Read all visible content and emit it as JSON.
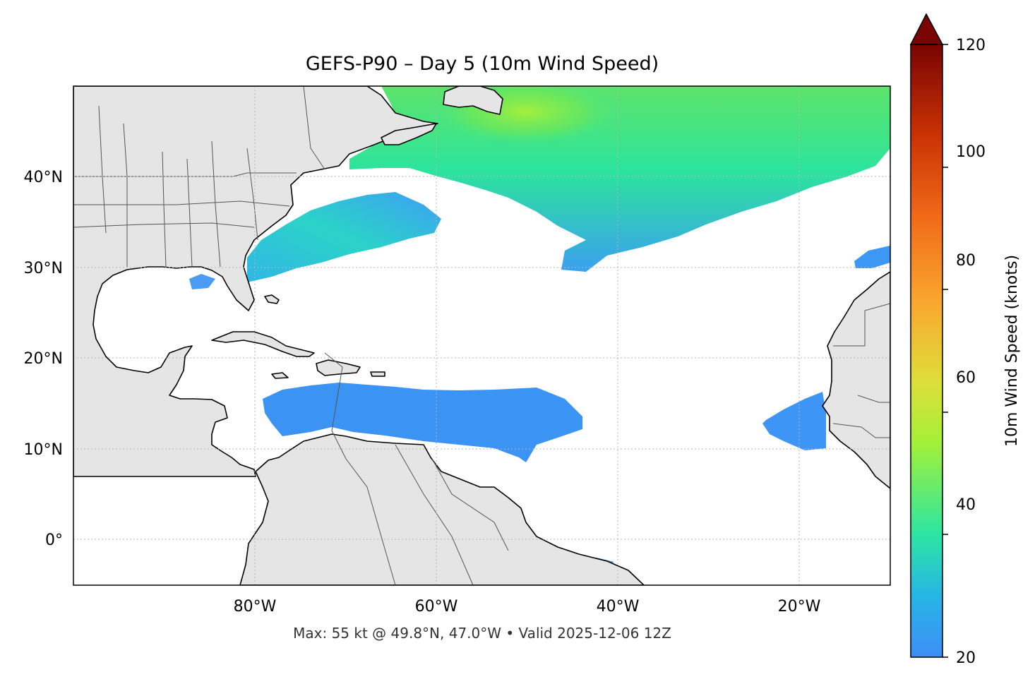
{
  "title": "GEFS-P90 – Day 5 (10m Wind Speed)",
  "subtitle": "Max: 55 kt @ 49.8°N, 47.0°W • Valid 2025-12-06 12Z",
  "map": {
    "lon_range": [
      -100,
      -10
    ],
    "lat_range": [
      -5,
      50
    ],
    "lon_ticks": [
      {
        "value": -80,
        "label": "80°W"
      },
      {
        "value": -60,
        "label": "60°W"
      },
      {
        "value": -40,
        "label": "40°W"
      },
      {
        "value": -20,
        "label": "20°W"
      }
    ],
    "lat_ticks": [
      {
        "value": 40,
        "label": "40°N"
      },
      {
        "value": 30,
        "label": "30°N"
      },
      {
        "value": 20,
        "label": "20°N"
      },
      {
        "value": 10,
        "label": "10°N"
      },
      {
        "value": 0,
        "label": "0°"
      }
    ],
    "gridlines": "dotted",
    "land_color": "#e5e5e5",
    "ocean_color": "#ffffff"
  },
  "colorbar": {
    "label": "10m Wind Speed (knots)",
    "min": 20,
    "max": 120,
    "extend": "max",
    "ticks": [
      {
        "value": 20,
        "label": "20"
      },
      {
        "value": 40,
        "label": "40"
      },
      {
        "value": 60,
        "label": "60"
      },
      {
        "value": 80,
        "label": "80"
      },
      {
        "value": 100,
        "label": "100"
      },
      {
        "value": 120,
        "label": "120"
      }
    ],
    "colormap": "turbo",
    "over_color": "#7a0403"
  },
  "wind_regions": [
    {
      "name": "north-atlantic-storm",
      "speed_kt": 40
    },
    {
      "name": "north-atlantic-core",
      "speed_kt": 55
    },
    {
      "name": "east-coast-band",
      "speed_kt": 33
    },
    {
      "name": "caribbean-trades",
      "speed_kt": 23
    },
    {
      "name": "cape-verde-jet",
      "speed_kt": 22
    },
    {
      "name": "northeast-band",
      "speed_kt": 25
    }
  ]
}
